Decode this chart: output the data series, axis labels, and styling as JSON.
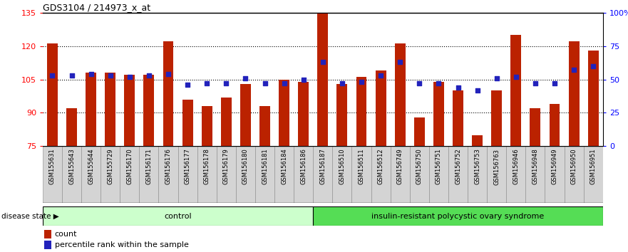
{
  "title": "GDS3104 / 214973_x_at",
  "samples": [
    "GSM155631",
    "GSM155643",
    "GSM155644",
    "GSM155729",
    "GSM156170",
    "GSM156171",
    "GSM156176",
    "GSM156177",
    "GSM156178",
    "GSM156179",
    "GSM156180",
    "GSM156181",
    "GSM156184",
    "GSM156186",
    "GSM156187",
    "GSM156510",
    "GSM156511",
    "GSM156512",
    "GSM156749",
    "GSM156750",
    "GSM156751",
    "GSM156752",
    "GSM156753",
    "GSM156763",
    "GSM156946",
    "GSM156948",
    "GSM156949",
    "GSM156950",
    "GSM156951"
  ],
  "bar_values": [
    121,
    92,
    108,
    108,
    107,
    107,
    122,
    96,
    93,
    97,
    103,
    93,
    105,
    104,
    135,
    103,
    106,
    109,
    121,
    88,
    104,
    100,
    80,
    100,
    125,
    92,
    94,
    122,
    118
  ],
  "percentile_values": [
    53,
    53,
    54,
    53,
    52,
    53,
    54,
    46,
    47,
    47,
    51,
    47,
    47,
    50,
    63,
    47,
    48,
    53,
    63,
    47,
    47,
    44,
    42,
    51,
    52,
    47,
    47,
    57,
    60
  ],
  "control_count": 14,
  "ylim_left": [
    75,
    135
  ],
  "ylim_right": [
    0,
    100
  ],
  "yticks_left": [
    75,
    90,
    105,
    120,
    135
  ],
  "yticks_right": [
    0,
    25,
    50,
    75,
    100
  ],
  "bar_color": "#BB2200",
  "percentile_color": "#2222BB",
  "control_label": "control",
  "disease_label": "insulin-resistant polycystic ovary syndrome",
  "disease_state_label": "disease state",
  "legend_count": "count",
  "legend_percentile": "percentile rank within the sample",
  "control_bg": "#CCFFCC",
  "disease_bg": "#55DD55",
  "label_bg": "#D4D4D4"
}
